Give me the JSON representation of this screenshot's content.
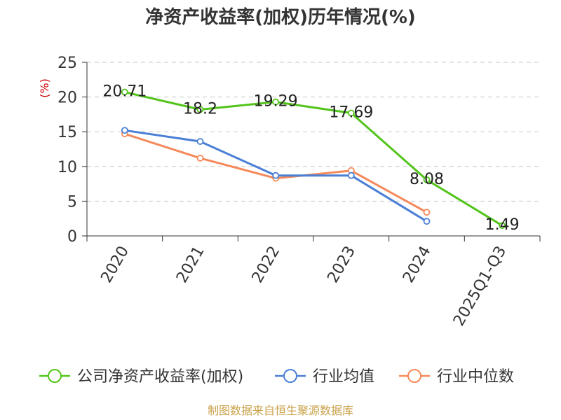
{
  "title": "净资产收益率(加权)历年情况(%)",
  "source_text": "制图数据来自恒生聚源数据库",
  "chart_data": {
    "type": "line",
    "title": "净资产收益率(加权)历年情况(%)",
    "ylabel": "(%)",
    "xlabel": "",
    "categories": [
      "2020",
      "2021",
      "2022",
      "2023",
      "2024",
      "2025Q1-Q3"
    ],
    "ylim": [
      0,
      25
    ],
    "yticks": [
      0,
      5,
      10,
      15,
      20,
      25
    ],
    "grid": true,
    "legend_position": "bottom",
    "series": [
      {
        "name": "公司净资产收益率(加权)",
        "color": "#52c41a",
        "values": [
          20.71,
          18.2,
          19.29,
          17.69,
          8.08,
          1.49
        ],
        "data_labels": [
          "20.71",
          "18.2",
          "19.29",
          "17.69",
          "8.08",
          "1.49"
        ]
      },
      {
        "name": "行业均值",
        "color": "#4a7fd6",
        "values": [
          15.2,
          13.6,
          8.7,
          8.7,
          2.1,
          null
        ]
      },
      {
        "name": "行业中位数",
        "color": "#f5895a",
        "values": [
          14.7,
          11.2,
          8.3,
          9.4,
          3.4,
          null
        ]
      }
    ]
  }
}
